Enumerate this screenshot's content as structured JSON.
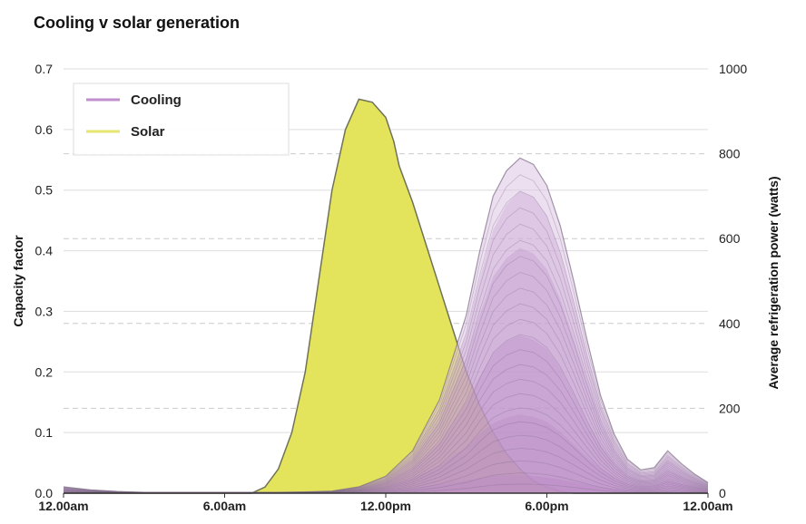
{
  "chart_data": {
    "type": "area",
    "title": "Cooling v solar generation",
    "ylabel_left": "Capacity factor",
    "ylabel_right": "Average refrigeration power (watts)",
    "ylim_left": [
      0,
      0.7
    ],
    "ylim_right": [
      0,
      1000
    ],
    "xlim": [
      0,
      24
    ],
    "x_ticks": [
      {
        "x": 0,
        "label": "12.00am"
      },
      {
        "x": 6,
        "label": "6.00am"
      },
      {
        "x": 12,
        "label": "12.00pm"
      },
      {
        "x": 18,
        "label": "6.00pm"
      },
      {
        "x": 24,
        "label": "12.00am"
      }
    ],
    "y_ticks_left": [
      "0.0",
      "0.1",
      "0.2",
      "0.3",
      "0.4",
      "0.5",
      "0.6",
      "0.7"
    ],
    "y_ticks_right": [
      "0",
      "200",
      "400",
      "600",
      "800",
      "1000"
    ],
    "grid": true,
    "legend": {
      "position": "top-left",
      "entries": [
        {
          "name": "Cooling",
          "color": "#c28fce"
        },
        {
          "name": "Solar",
          "color": "#e6e670"
        }
      ]
    },
    "colors": {
      "solar_fill": "#e3e35c",
      "solar_stroke": "#6f7258",
      "cooling_fill": "#b98ac6",
      "cooling_fill_light": "#dcc4e3",
      "cooling_stroke": "#7d6a86",
      "grid_solid": "#dddddd",
      "grid_dashed": "#cccccc"
    },
    "series": [
      {
        "name": "Solar",
        "axis": "left",
        "x": [
          0,
          1,
          2,
          3,
          4,
          5,
          6,
          7,
          7.5,
          8,
          8.5,
          9,
          9.5,
          10,
          10.5,
          11,
          11.5,
          12,
          12.3,
          12.5,
          13,
          13.5,
          14,
          14.5,
          15,
          15.5,
          16,
          16.5,
          17,
          17.5,
          18,
          18.5,
          19,
          20,
          21,
          22,
          23,
          24
        ],
        "y": [
          0,
          0,
          0,
          0,
          0,
          0,
          0,
          0,
          0.01,
          0.04,
          0.1,
          0.2,
          0.35,
          0.5,
          0.6,
          0.65,
          0.645,
          0.62,
          0.58,
          0.54,
          0.48,
          0.41,
          0.34,
          0.27,
          0.2,
          0.145,
          0.1,
          0.065,
          0.04,
          0.02,
          0.01,
          0.003,
          0,
          0,
          0,
          0,
          0,
          0
        ]
      },
      {
        "name": "Cooling",
        "axis": "right",
        "note_type": "stacked ensemble of many household traces; values are the upper envelope",
        "x": [
          0,
          1,
          2,
          3,
          4,
          5,
          6,
          7,
          8,
          9,
          10,
          11,
          12,
          13,
          14,
          15,
          15.5,
          16,
          16.5,
          17,
          17.5,
          18,
          18.5,
          19,
          19.5,
          20,
          20.5,
          21,
          21.5,
          22,
          22.5,
          23,
          23.5,
          24
        ],
        "y": [
          15,
          8,
          4,
          2,
          2,
          2,
          2,
          2,
          2,
          3,
          5,
          15,
          40,
          100,
          220,
          420,
          570,
          700,
          760,
          790,
          775,
          725,
          630,
          500,
          360,
          230,
          140,
          80,
          55,
          60,
          100,
          70,
          45,
          25
        ]
      }
    ],
    "cooling_bands": {
      "axis": "right",
      "x": [
        0,
        1,
        2,
        3,
        4,
        5,
        6,
        7,
        8,
        9,
        10,
        11,
        12,
        13,
        14,
        15,
        15.5,
        16,
        16.5,
        17,
        17.5,
        18,
        18.5,
        19,
        19.5,
        20,
        20.5,
        21,
        21.5,
        22,
        22.5,
        23,
        23.5,
        24
      ],
      "levels": [
        [
          4,
          2,
          1,
          1,
          1,
          1,
          1,
          1,
          1,
          1,
          1,
          3,
          6,
          12,
          20,
          30,
          36,
          40,
          42,
          42,
          40,
          37,
          32,
          26,
          20,
          14,
          10,
          6,
          4,
          4,
          6,
          5,
          4,
          3
        ],
        [
          8,
          4,
          2,
          1,
          1,
          1,
          1,
          1,
          1,
          1,
          2,
          6,
          15,
          35,
          65,
          110,
          140,
          165,
          178,
          185,
          180,
          168,
          145,
          115,
          85,
          58,
          38,
          22,
          16,
          18,
          30,
          22,
          15,
          9
        ],
        [
          10,
          5,
          3,
          2,
          2,
          2,
          2,
          2,
          2,
          2,
          3,
          9,
          25,
          60,
          120,
          215,
          275,
          330,
          358,
          372,
          362,
          340,
          295,
          235,
          170,
          115,
          72,
          42,
          30,
          32,
          55,
          40,
          27,
          16
        ],
        [
          12,
          6,
          3,
          2,
          2,
          2,
          2,
          2,
          2,
          2,
          4,
          11,
          32,
          80,
          170,
          320,
          420,
          510,
          555,
          578,
          565,
          528,
          458,
          365,
          265,
          172,
          105,
          60,
          42,
          44,
          78,
          56,
          36,
          20
        ],
        [
          14,
          7,
          4,
          2,
          2,
          2,
          2,
          2,
          2,
          3,
          5,
          13,
          37,
          92,
          200,
          375,
          505,
          620,
          680,
          712,
          698,
          654,
          568,
          452,
          328,
          210,
          128,
          72,
          50,
          52,
          90,
          64,
          41,
          23
        ]
      ]
    }
  }
}
